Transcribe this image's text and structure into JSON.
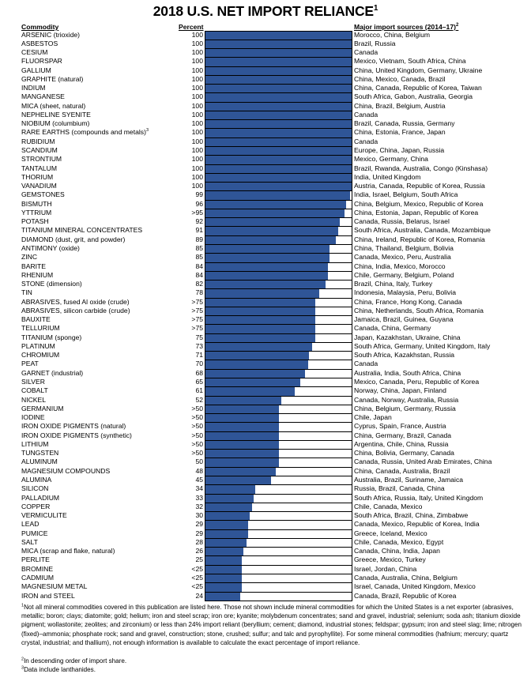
{
  "title": "2018 U.S. NET IMPORT RELIANCE",
  "title_footnote": "1",
  "headers": {
    "commodity": "Commodity",
    "percent": "Percent",
    "sources": "Major import sources (2014–17)",
    "sources_footnote": "2"
  },
  "colors": {
    "bar": "#2F5597",
    "border": "#000000"
  },
  "chart_data": {
    "type": "bar",
    "orientation": "horizontal",
    "title": "2018 U.S. NET IMPORT RELIANCE",
    "xlim": [
      0,
      100
    ],
    "rows": [
      {
        "commodity": "ARSENIC (trioxide)",
        "label": "100",
        "value": 100,
        "sources": "Morocco, China, Belgium"
      },
      {
        "commodity": "ASBESTOS",
        "label": "100",
        "value": 100,
        "sources": "Brazil, Russia"
      },
      {
        "commodity": "CESIUM",
        "label": "100",
        "value": 100,
        "sources": "Canada"
      },
      {
        "commodity": "FLUORSPAR",
        "label": "100",
        "value": 100,
        "sources": "Mexico, Vietnam, South Africa, China"
      },
      {
        "commodity": "GALLIUM",
        "label": "100",
        "value": 100,
        "sources": "China, United Kingdom, Germany, Ukraine"
      },
      {
        "commodity": "GRAPHITE (natural)",
        "label": "100",
        "value": 100,
        "sources": "China, Mexico, Canada, Brazil"
      },
      {
        "commodity": "INDIUM",
        "label": "100",
        "value": 100,
        "sources": "China, Canada, Republic of Korea, Taiwan"
      },
      {
        "commodity": "MANGANESE",
        "label": "100",
        "value": 100,
        "sources": "South Africa, Gabon, Australia, Georgia"
      },
      {
        "commodity": "MICA (sheet, natural)",
        "label": "100",
        "value": 100,
        "sources": "China, Brazil, Belgium, Austria"
      },
      {
        "commodity": "NEPHELINE SYENITE",
        "label": "100",
        "value": 100,
        "sources": "Canada"
      },
      {
        "commodity": "NIOBIUM (columbium)",
        "label": "100",
        "value": 100,
        "sources": "Brazil, Canada, Russia, Germany"
      },
      {
        "commodity": "RARE EARTHS (compounds and metals)",
        "footnote": "3",
        "label": "100",
        "value": 100,
        "sources": "China, Estonia, France, Japan"
      },
      {
        "commodity": "RUBIDIUM",
        "label": "100",
        "value": 100,
        "sources": "Canada"
      },
      {
        "commodity": "SCANDIUM",
        "label": "100",
        "value": 100,
        "sources": "Europe, China, Japan, Russia"
      },
      {
        "commodity": "STRONTIUM",
        "label": "100",
        "value": 100,
        "sources": "Mexico, Germany, China"
      },
      {
        "commodity": "TANTALUM",
        "label": "100",
        "value": 100,
        "sources": "Brazil, Rwanda, Australia, Congo (Kinshasa)"
      },
      {
        "commodity": "THORIUM",
        "label": "100",
        "value": 100,
        "sources": "India, United Kingdom"
      },
      {
        "commodity": "VANADIUM",
        "label": "100",
        "value": 100,
        "sources": "Austria, Canada, Republic of Korea, Russia"
      },
      {
        "commodity": "GEMSTONES",
        "label": "99",
        "value": 99,
        "sources": "India, Israel, Belgium, South Africa"
      },
      {
        "commodity": "BISMUTH",
        "label": "96",
        "value": 96,
        "sources": "China, Belgium, Mexico, Republic of Korea"
      },
      {
        "commodity": "YTTRIUM",
        "label": ">95",
        "value": 95,
        "sources": "China, Estonia, Japan, Republic of Korea"
      },
      {
        "commodity": "POTASH",
        "label": "92",
        "value": 92,
        "sources": "Canada, Russia, Belarus, Israel"
      },
      {
        "commodity": "TITANIUM MINERAL CONCENTRATES",
        "label": "91",
        "value": 91,
        "sources": "South Africa, Australia, Canada, Mozambique"
      },
      {
        "commodity": "DIAMOND (dust, grit, and powder)",
        "label": "89",
        "value": 89,
        "sources": "China, Ireland, Republic of Korea, Romania"
      },
      {
        "commodity": "ANTIMONY (oxide)",
        "label": "85",
        "value": 85,
        "sources": "China, Thailand, Belgium, Bolivia"
      },
      {
        "commodity": "ZINC",
        "label": "85",
        "value": 85,
        "sources": "Canada, Mexico, Peru, Australia"
      },
      {
        "commodity": "BARITE",
        "label": "84",
        "value": 84,
        "sources": "China, India, Mexico, Morocco"
      },
      {
        "commodity": "RHENIUM",
        "label": "84",
        "value": 84,
        "sources": "Chile, Germany, Belgium, Poland"
      },
      {
        "commodity": "STONE (dimension)",
        "label": "82",
        "value": 82,
        "sources": "Brazil, China, Italy, Turkey"
      },
      {
        "commodity": "TIN",
        "label": "78",
        "value": 78,
        "sources": "Indonesia, Malaysia, Peru, Bolivia"
      },
      {
        "commodity": "ABRASIVES, fused Al oxide (crude)",
        "label": ">75",
        "value": 75,
        "sources": "China, France, Hong Kong, Canada"
      },
      {
        "commodity": "ABRASIVES, silicon carbide (crude)",
        "label": ">75",
        "value": 75,
        "sources": "China, Netherlands, South Africa, Romania"
      },
      {
        "commodity": "BAUXITE",
        "label": ">75",
        "value": 75,
        "sources": "Jamaica, Brazil, Guinea, Guyana"
      },
      {
        "commodity": "TELLURIUM",
        "label": ">75",
        "value": 75,
        "sources": "Canada, China, Germany"
      },
      {
        "commodity": "TITANIUM (sponge)",
        "label": "75",
        "value": 75,
        "sources": "Japan, Kazakhstan, Ukraine, China"
      },
      {
        "commodity": "PLATINUM",
        "label": "73",
        "value": 73,
        "sources": "South Africa, Germany, United Kingdom, Italy"
      },
      {
        "commodity": "CHROMIUM",
        "label": "71",
        "value": 71,
        "sources": "South Africa, Kazakhstan, Russia"
      },
      {
        "commodity": "PEAT",
        "label": "70",
        "value": 70,
        "sources": "Canada"
      },
      {
        "commodity": "GARNET (industrial)",
        "label": "68",
        "value": 68,
        "sources": "Australia, India, South Africa, China"
      },
      {
        "commodity": "SILVER",
        "label": "65",
        "value": 65,
        "sources": "Mexico, Canada, Peru, Republic of Korea"
      },
      {
        "commodity": "COBALT",
        "label": "61",
        "value": 61,
        "sources": "Norway, China, Japan, Finland"
      },
      {
        "commodity": "NICKEL",
        "label": "52",
        "value": 52,
        "sources": "Canada, Norway, Australia, Russia"
      },
      {
        "commodity": "GERMANIUM",
        "label": ">50",
        "value": 50,
        "sources": "China, Belgium, Germany, Russia"
      },
      {
        "commodity": "IODINE",
        "label": ">50",
        "value": 50,
        "sources": "Chile, Japan"
      },
      {
        "commodity": "IRON OXIDE PIGMENTS (natural)",
        "label": ">50",
        "value": 50,
        "sources": "Cyprus, Spain, France, Austria"
      },
      {
        "commodity": "IRON OXIDE PIGMENTS (synthetic)",
        "label": ">50",
        "value": 50,
        "sources": "China, Germany, Brazil, Canada"
      },
      {
        "commodity": "LITHIUM",
        "label": ">50",
        "value": 50,
        "sources": "Argentina, Chile, China, Russia"
      },
      {
        "commodity": "TUNGSTEN",
        "label": ">50",
        "value": 50,
        "sources": "China, Bolivia, Germany, Canada"
      },
      {
        "commodity": "ALUMINUM",
        "label": "50",
        "value": 50,
        "sources": "Canada, Russia, United Arab Emirates, China"
      },
      {
        "commodity": "MAGNESIUM COMPOUNDS",
        "label": "48",
        "value": 48,
        "sources": "China, Canada, Australia, Brazil"
      },
      {
        "commodity": "ALUMINA",
        "label": "45",
        "value": 45,
        "sources": "Australia, Brazil, Suriname, Jamaica"
      },
      {
        "commodity": "SILICON",
        "label": "34",
        "value": 34,
        "sources": "Russia, Brazil, Canada, China"
      },
      {
        "commodity": "PALLADIUM",
        "label": "33",
        "value": 33,
        "sources": "South Africa, Russia, Italy, United Kingdom"
      },
      {
        "commodity": "COPPER",
        "label": "32",
        "value": 32,
        "sources": "Chile, Canada, Mexico"
      },
      {
        "commodity": "VERMICULITE",
        "label": "30",
        "value": 30,
        "sources": "South Africa, Brazil, China, Zimbabwe"
      },
      {
        "commodity": "LEAD",
        "label": "29",
        "value": 29,
        "sources": "Canada, Mexico, Republic of Korea, India"
      },
      {
        "commodity": "PUMICE",
        "label": "29",
        "value": 29,
        "sources": "Greece, Iceland, Mexico"
      },
      {
        "commodity": "SALT",
        "label": "28",
        "value": 28,
        "sources": "Chile, Canada, Mexico, Egypt"
      },
      {
        "commodity": "MICA (scrap and flake, natural)",
        "label": "26",
        "value": 26,
        "sources": "Canada, China, India, Japan"
      },
      {
        "commodity": "PERLITE",
        "label": "25",
        "value": 25,
        "sources": "Greece, Mexico, Turkey"
      },
      {
        "commodity": "BROMINE",
        "label": "<25",
        "value": 25,
        "sources": "Israel, Jordan, China"
      },
      {
        "commodity": "CADMIUM",
        "label": "<25",
        "value": 25,
        "sources": "Canada, Australia, China, Belgium"
      },
      {
        "commodity": "MAGNESIUM METAL",
        "label": "<25",
        "value": 25,
        "sources": "Israel, Canada, United Kingdom, Mexico"
      },
      {
        "commodity": "IRON and STEEL",
        "label": "24",
        "value": 24,
        "sources": "Canada, Brazil, Republic of Korea"
      }
    ]
  },
  "footnotes": [
    {
      "mark": "1",
      "text": "Not all mineral commodities covered in this publication are listed here. Those not shown include mineral commodities for which the United States is a net exporter (abrasives, metallic; boron; clays; diatomite; gold; helium; iron and steel scrap; iron ore; kyanite; molybdenum concentrates; sand and gravel, industrial; selenium; soda ash; titanium dioxide pigment; wollastonite; zeolites; and zirconium) or less than 24% import reliant (beryllium; cement; diamond, industrial stones; feldspar; gypsum; iron and steel slag; lime; nitrogen (fixed)–ammonia; phosphate rock; sand and gravel, construction; stone, crushed; sulfur; and talc and pyrophyllite). For some mineral commodities (hafnium; mercury; quartz crystal, industrial; and thallium), not enough information is available to calculate the exact percentage of import reliance."
    },
    {
      "mark": "2",
      "text": "In descending order of import share."
    },
    {
      "mark": "3",
      "text": "Data include lanthanides."
    }
  ]
}
